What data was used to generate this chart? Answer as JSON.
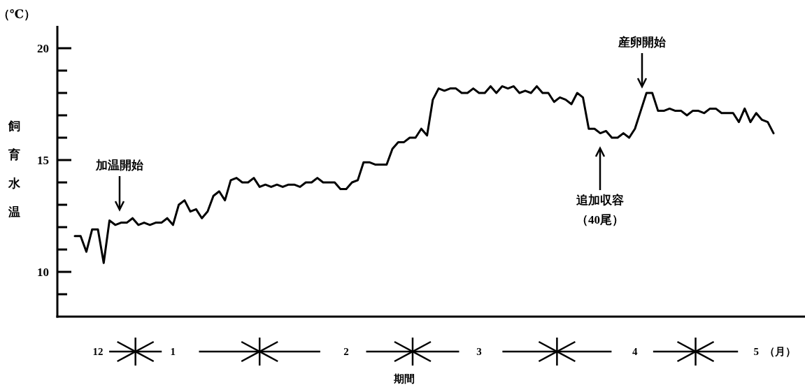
{
  "chart_data": {
    "type": "line",
    "xlabel": "期間",
    "ylabel": "飼育水温",
    "categories": [
      null,
      null,
      null,
      null,
      "12",
      null,
      null,
      null,
      null,
      null,
      null,
      null,
      null,
      null,
      null,
      null,
      null,
      "1",
      null,
      null,
      null,
      null,
      null,
      null,
      null,
      null,
      null,
      null,
      null,
      null,
      null,
      null,
      null,
      null,
      null,
      null,
      null,
      null,
      null,
      null,
      null,
      null,
      null,
      null,
      null,
      null,
      null,
      "2",
      null,
      null,
      null,
      null,
      null,
      null,
      null,
      null,
      null,
      null,
      null,
      null,
      null,
      null,
      null,
      null,
      null,
      null,
      null,
      null,
      null,
      null,
      "3",
      null,
      null,
      null,
      null,
      null,
      null,
      null,
      null,
      null,
      null,
      null,
      null,
      null,
      null,
      null,
      null,
      null,
      null,
      null,
      null,
      null,
      null,
      null,
      null,
      null,
      null,
      "4",
      null,
      null,
      null,
      null,
      null,
      null,
      null,
      null,
      null,
      null,
      null,
      null,
      null,
      null,
      null,
      null,
      null,
      null,
      null,
      null,
      "5",
      null,
      null,
      null
    ],
    "ylim": [
      8,
      21
    ],
    "yticks": [
      {
        "value": 9,
        "label": null
      },
      {
        "value": 10,
        "label": "10"
      },
      {
        "value": 11,
        "label": null
      },
      {
        "value": 12,
        "label": null
      },
      {
        "value": 13,
        "label": null
      },
      {
        "value": 14,
        "label": null
      },
      {
        "value": 15,
        "label": "15"
      },
      {
        "value": 16,
        "label": null
      },
      {
        "value": 17,
        "label": null
      },
      {
        "value": 18,
        "label": null
      },
      {
        "value": 19,
        "label": null
      },
      {
        "value": 20,
        "label": "20"
      }
    ],
    "grid": false,
    "marker": "none",
    "line_style": "solid",
    "annotations": [
      "（℃）",
      "（月）",
      "加温開始",
      "追加収容（40尾）",
      "産卵開始"
    ],
    "series": [
      {
        "color": "#000000",
        "values": [
          11.6,
          11.6,
          10.9,
          11.9,
          11.9,
          10.4,
          12.3,
          12.1,
          12.2,
          12.2,
          12.4,
          12.1,
          12.2,
          12.1,
          12.2,
          12.2,
          12.4,
          12.1,
          13.0,
          13.2,
          12.7,
          12.8,
          12.4,
          12.7,
          13.4,
          13.6,
          13.2,
          14.1,
          14.2,
          14.0,
          14.0,
          14.2,
          13.8,
          13.9,
          13.8,
          13.9,
          13.8,
          13.9,
          13.9,
          13.8,
          14.0,
          14.0,
          14.2,
          14.0,
          14.0,
          14.0,
          13.7,
          13.7,
          14.0,
          14.1,
          14.9,
          14.9,
          14.8,
          14.8,
          14.8,
          15.5,
          15.8,
          15.8,
          16.0,
          16.0,
          16.4,
          16.1,
          17.7,
          18.2,
          18.1,
          18.2,
          18.2,
          18.0,
          18.0,
          18.2,
          18.0,
          18.0,
          18.3,
          18.0,
          18.3,
          18.2,
          18.3,
          18.0,
          18.1,
          18.0,
          18.3,
          18.0,
          18.0,
          17.6,
          17.8,
          17.7,
          17.5,
          18.0,
          17.8,
          16.4,
          16.4,
          16.2,
          16.3,
          16.0,
          16.0,
          16.2,
          16.0,
          16.4,
          17.2,
          18.0,
          18.0,
          17.2,
          17.2,
          17.3,
          17.2,
          17.2,
          17.0,
          17.2,
          17.2,
          17.1,
          17.3,
          17.3,
          17.1,
          17.1,
          17.1,
          16.7,
          17.3,
          16.7,
          17.1,
          16.8,
          16.7,
          16.2
        ]
      }
    ]
  }
}
